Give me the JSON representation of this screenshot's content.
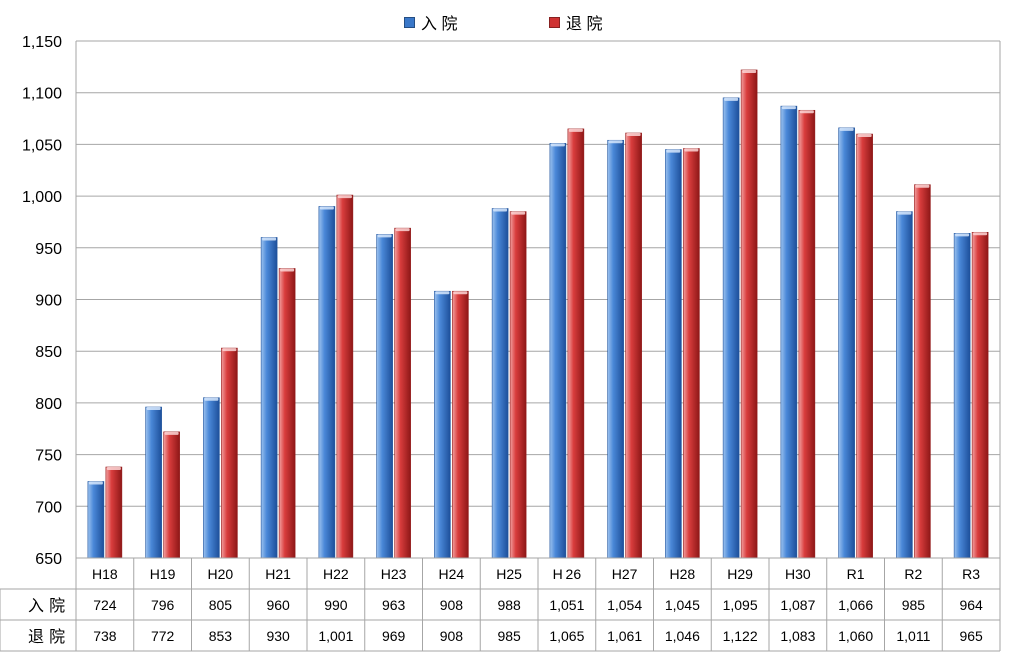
{
  "chart_data": {
    "type": "bar",
    "categories": [
      "H18",
      "H19",
      "H20",
      "H21",
      "H22",
      "H23",
      "H24",
      "H25",
      "H 26",
      "H27",
      "H28",
      "H29",
      "H30",
      "R1",
      "R2",
      "R3"
    ],
    "series": [
      {
        "name": "入 院",
        "color": "#3a78c9",
        "values": [
          724,
          796,
          805,
          960,
          990,
          963,
          908,
          988,
          1051,
          1054,
          1045,
          1095,
          1087,
          1066,
          985,
          964
        ],
        "labels": [
          "724",
          "796",
          "805",
          "960",
          "990",
          "963",
          "908",
          "988",
          "1,051",
          "1,054",
          "1,045",
          "1,095",
          "1,087",
          "1,066",
          "985",
          "964"
        ]
      },
      {
        "name": "退 院",
        "color": "#cf3333",
        "values": [
          738,
          772,
          853,
          930,
          1001,
          969,
          908,
          985,
          1065,
          1061,
          1046,
          1122,
          1083,
          1060,
          1011,
          965
        ],
        "labels": [
          "738",
          "772",
          "853",
          "930",
          "1,001",
          "969",
          "908",
          "985",
          "1,065",
          "1,061",
          "1,046",
          "1,122",
          "1,083",
          "1,060",
          "1,011",
          "965"
        ]
      }
    ],
    "ylim": [
      650,
      1150
    ],
    "yticks": [
      "650",
      "700",
      "750",
      "800",
      "850",
      "900",
      "950",
      "1,000",
      "1,050",
      "1,100",
      "1,150"
    ],
    "ytick_values": [
      650,
      700,
      750,
      800,
      850,
      900,
      950,
      1000,
      1050,
      1100,
      1150
    ],
    "grid": true,
    "legend_position": "top",
    "has_data_table": true
  }
}
